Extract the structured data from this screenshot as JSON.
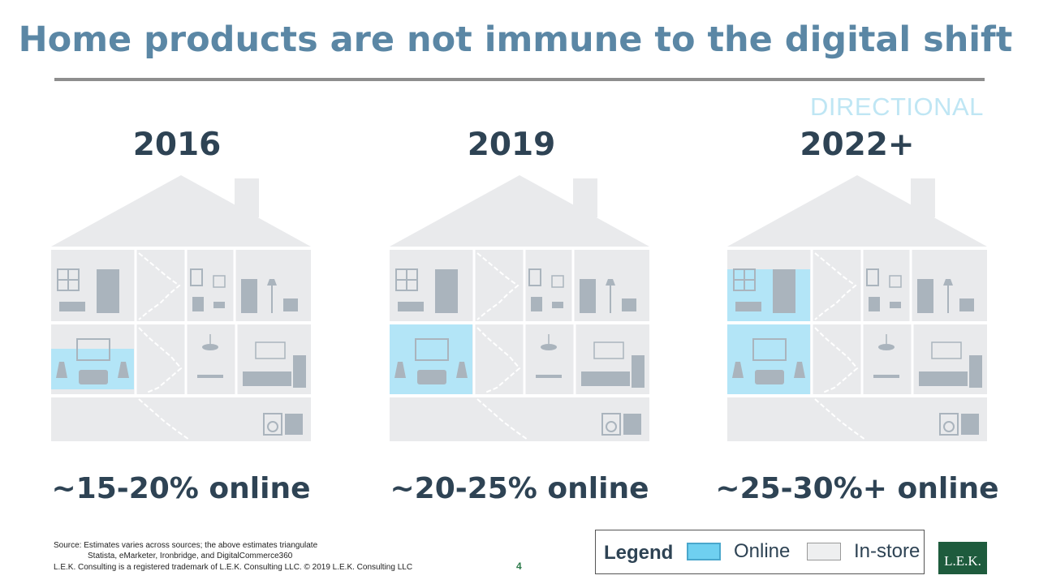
{
  "title": "Home products are not immune to the digital shift",
  "directional_label": "DIRECTIONAL",
  "panels": [
    {
      "year": "2016",
      "online_share": "~15-20% online",
      "online_rooms": [
        "living-room-partial"
      ]
    },
    {
      "year": "2019",
      "online_share": "~20-25% online",
      "online_rooms": [
        "living-room"
      ]
    },
    {
      "year": "2022+",
      "online_share": "~25-30%+ online",
      "online_rooms": [
        "living-room",
        "bedroom"
      ]
    }
  ],
  "source": {
    "line1": "Source: Estimates varies across sources; the above estimates triangulate",
    "line2": "Statista, eMarketer, Ironbridge, and DigitalCommerce360"
  },
  "trademark": "L.E.K. Consulting is a registered trademark of L.E.K. Consulting LLC. © 2019 L.E.K. Consulting LLC",
  "page_number": "4",
  "legend": {
    "title": "Legend",
    "items": [
      {
        "label": "Online",
        "color": "#6fd0f0"
      },
      {
        "label": "In-store",
        "color": "#eeeff0"
      }
    ]
  },
  "logo_text": "L.E.K.",
  "colors": {
    "title": "#5b87a5",
    "dark_text": "#2e4354",
    "online": "#b3e5f7",
    "house_fill": "#e9eaec",
    "icon": "#aab4bd"
  }
}
